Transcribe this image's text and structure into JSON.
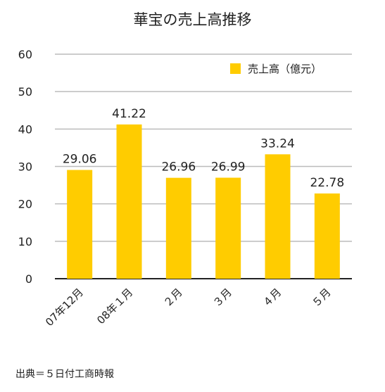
{
  "colors": {
    "bar": "#FFCC00",
    "grid": "#bbbbbb",
    "axis": "#222222"
  },
  "source_note": "出典＝５日付工商時報",
  "chart_data": {
    "type": "bar",
    "title": "華宝の売上高推移",
    "categories": [
      "07年12月",
      "08年１月",
      "２月",
      "３月",
      "４月",
      "５月"
    ],
    "series": [
      {
        "name": "売上高（億元）",
        "values": [
          29.06,
          41.22,
          26.96,
          26.99,
          33.24,
          22.78
        ]
      }
    ],
    "value_labels": [
      "29.06",
      "41.22",
      "26.96",
      "26.99",
      "33.24",
      "22.78"
    ],
    "yticks": [
      "0",
      "10",
      "20",
      "30",
      "40",
      "50",
      "60"
    ],
    "ylim": [
      0,
      60
    ],
    "grid": true,
    "legend_position": "top-right",
    "xlabel": "",
    "ylabel": ""
  }
}
